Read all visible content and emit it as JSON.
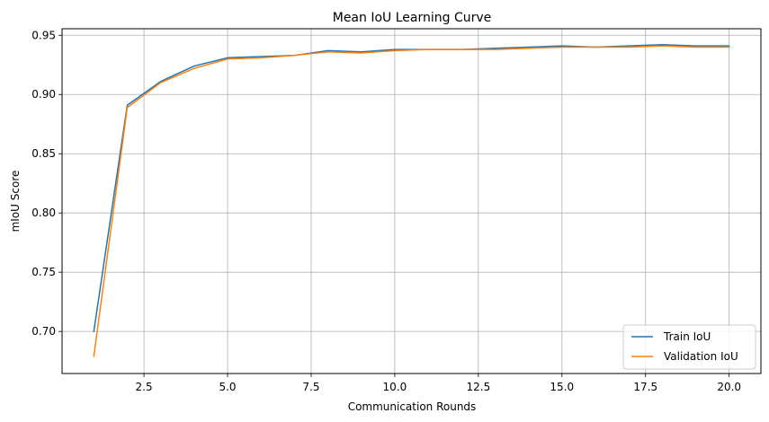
{
  "chart_data": {
    "type": "line",
    "title": "Mean IoU Learning Curve",
    "xlabel": "Communication Rounds",
    "ylabel": "mIoU Score",
    "xlim": [
      0.05,
      20.95
    ],
    "ylim": [
      0.6645,
      0.9555
    ],
    "xticks": [
      2.5,
      5.0,
      7.5,
      10.0,
      12.5,
      15.0,
      17.5,
      20.0
    ],
    "xtick_labels": [
      "2.5",
      "5.0",
      "7.5",
      "10.0",
      "12.5",
      "15.0",
      "17.5",
      "20.0"
    ],
    "yticks": [
      0.7,
      0.75,
      0.8,
      0.85,
      0.9,
      0.95
    ],
    "ytick_labels": [
      "0.70",
      "0.75",
      "0.80",
      "0.85",
      "0.90",
      "0.95"
    ],
    "grid": true,
    "legend_position": "bottom-right",
    "x": [
      1,
      2,
      3,
      4,
      5,
      6,
      7,
      8,
      9,
      10,
      11,
      12,
      13,
      14,
      15,
      16,
      17,
      18,
      19,
      20
    ],
    "series": [
      {
        "name": "Train IoU",
        "color": "#1f77b4",
        "values": [
          0.7,
          0.891,
          0.911,
          0.924,
          0.931,
          0.932,
          0.933,
          0.937,
          0.936,
          0.938,
          0.938,
          0.938,
          0.939,
          0.94,
          0.941,
          0.94,
          0.941,
          0.942,
          0.941,
          0.941
        ]
      },
      {
        "name": "Validation IoU",
        "color": "#ff7f0e",
        "values": [
          0.679,
          0.889,
          0.91,
          0.922,
          0.93,
          0.931,
          0.933,
          0.936,
          0.935,
          0.937,
          0.938,
          0.938,
          0.938,
          0.939,
          0.94,
          0.94,
          0.94,
          0.941,
          0.94,
          0.94
        ]
      }
    ]
  }
}
